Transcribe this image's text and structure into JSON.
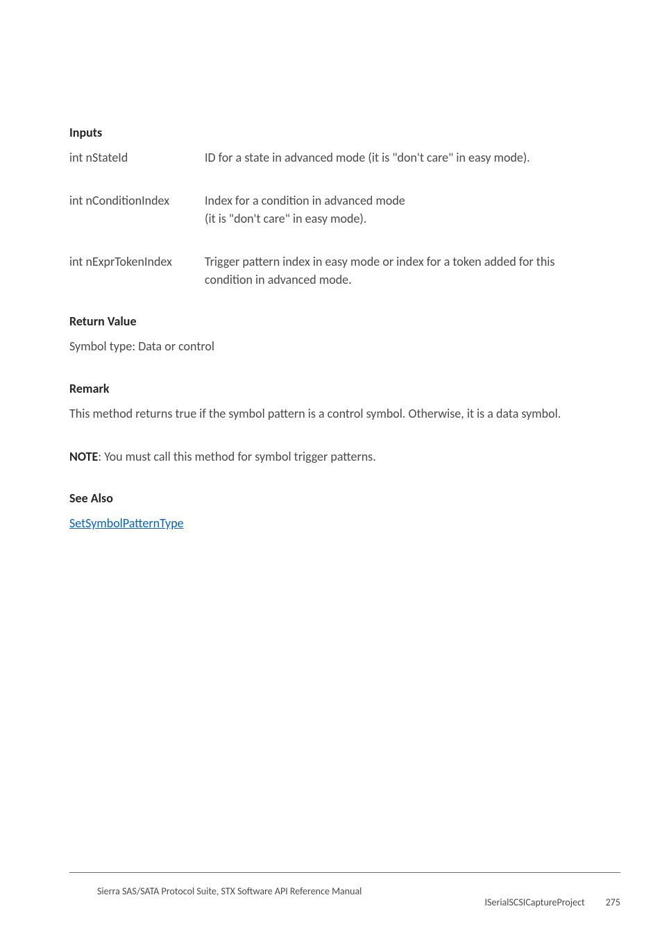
{
  "inputs": {
    "heading": "Inputs",
    "params": [
      {
        "name": "int nStateId",
        "desc": "ID for a state in advanced mode (it is \"don't care\" in easy mode)."
      },
      {
        "name": "int nConditionIndex",
        "desc": "Index for a condition in advanced mode\n(it is \"don't care\" in easy mode)."
      },
      {
        "name": "int nExprTokenIndex",
        "desc": "Trigger pattern index in easy mode or index for a token added for this condition in advanced mode."
      }
    ]
  },
  "return_value": {
    "heading": "Return Value",
    "text": "Symbol type: Data or control"
  },
  "remark": {
    "heading": "Remark",
    "text": "This method returns true if the symbol pattern is a control symbol. Otherwise, it is a data symbol."
  },
  "note": {
    "label": "NOTE",
    "text": ": You must call this method for symbol trigger patterns."
  },
  "see_also": {
    "heading": "See Also",
    "link_text": "SetSymbolPatternType"
  },
  "footer": {
    "left": "Sierra SAS/SATA Protocol Suite, STX Software API Reference Manual",
    "section": "ISerialSCSICaptureProject",
    "page": "275"
  }
}
